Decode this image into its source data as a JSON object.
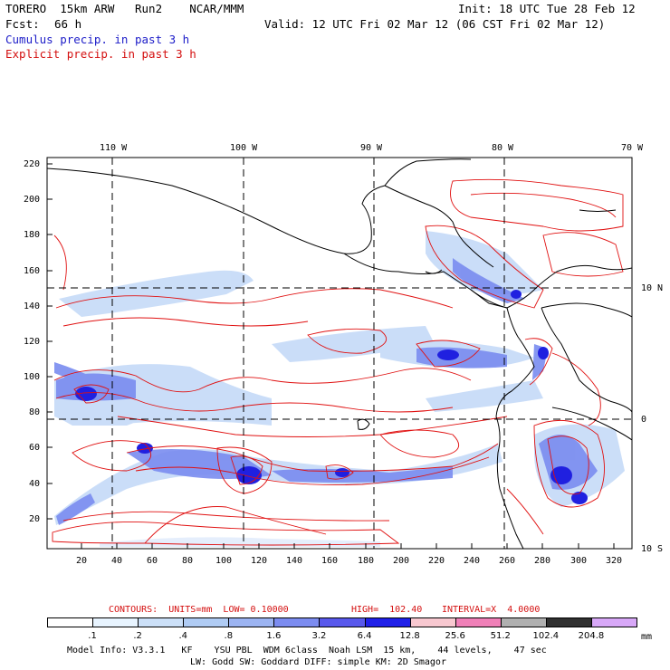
{
  "header": {
    "model": "TORERO  15km ARW   Run2    NCAR/MMM",
    "init": "Init: 18 UTC Tue 28 Feb 12",
    "fcst_label": "Fcst:",
    "fcst_value": "66 h",
    "valid": "Valid: 12 UTC Fri 02 Mar 12 (06 CST Fri 02 Mar 12)",
    "line_blue": "Cumulus precip. in past 3 h",
    "line_red": "Explicit precip. in past 3 h"
  },
  "map": {
    "lon_labels": [
      "110 W",
      "100 W",
      "90 W",
      "80 W",
      "70 W"
    ],
    "lat_labels": [
      "10 N",
      "0",
      "10 S"
    ],
    "y_ticks": [
      "220",
      "200",
      "180",
      "160",
      "140",
      "120",
      "100",
      "80",
      "60",
      "40",
      "20"
    ],
    "x_ticks": [
      "20",
      "40",
      "60",
      "80",
      "100",
      "120",
      "140",
      "160",
      "180",
      "200",
      "220",
      "240",
      "260",
      "280",
      "300",
      "320"
    ],
    "colors": {
      "coast": "#000000",
      "grid": "#000000",
      "explicit_contour": "#e01010",
      "cumulus_light": "#c8dcf8",
      "cumulus_mid": "#7a8cf0",
      "cumulus_dark": "#2020e0"
    }
  },
  "contours_line": {
    "label": "CONTOURS:  UNITS=mm  LOW= 0.10000",
    "high": "HIGH=  102.40",
    "interval": "INTERVAL=X  4.0000"
  },
  "colorbar": {
    "labels": [
      ".1",
      ".2",
      ".4",
      ".8",
      "1.6",
      "3.2",
      "6.4",
      "12.8",
      "25.6",
      "51.2",
      "102.4",
      "204.8"
    ],
    "colors": [
      "#ffffff",
      "#e8f4ff",
      "#cce0f8",
      "#b0ccf4",
      "#9cb4f2",
      "#7c8cf0",
      "#5858ec",
      "#2020e8",
      "#f8c8d0",
      "#f080b8",
      "#b0b0b0",
      "#303030",
      "#d8a8f8"
    ],
    "unit": "mm"
  },
  "footer": {
    "line1": "Model Info: V3.3.1   KF    YSU PBL  WDM 6class  Noah LSM  15 km,    44 levels,    47 sec",
    "line2": "LW: Godd SW: Goddard DIFF: simple KM: 2D Smagor"
  }
}
